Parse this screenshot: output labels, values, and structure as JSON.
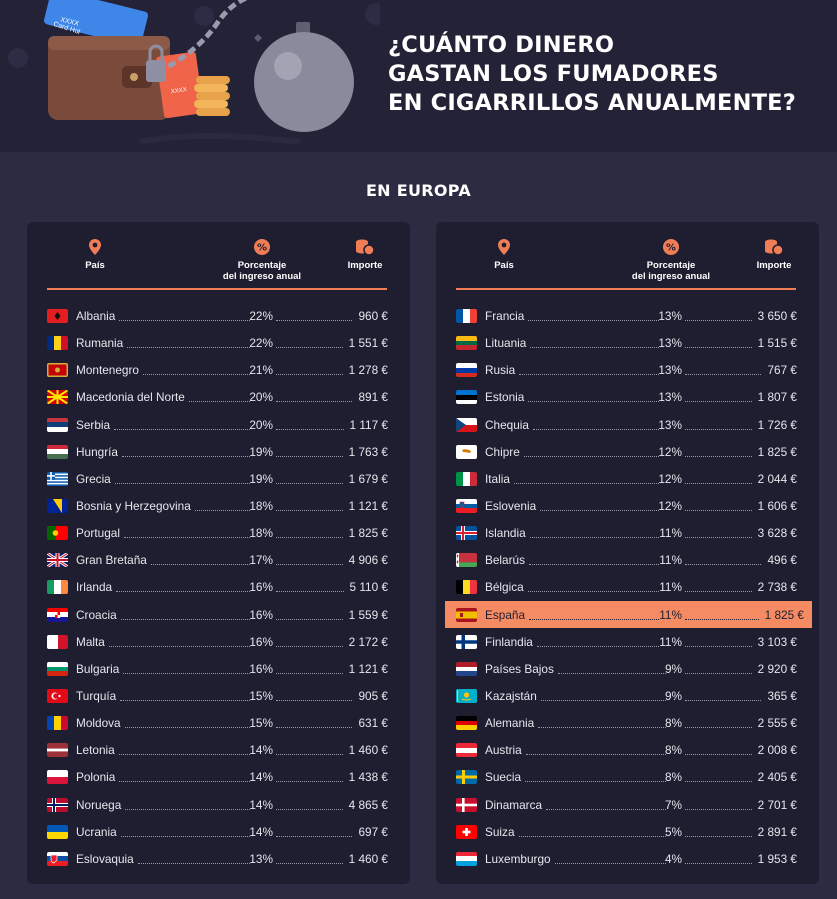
{
  "header": {
    "title_lines": [
      "¿CUÁNTO DINERO",
      "GASTAN LOS FUMADORES",
      "EN CIGARRILLOS ANUALMENTE?"
    ],
    "card_text": "Card Hol",
    "card_text2": "XXXX",
    "tag_text": "XXXX"
  },
  "section_title": "EN EUROPA",
  "columns": {
    "country": "País",
    "pct_line1": "Porcentaje",
    "pct_line2": "del ingreso anual",
    "amount": "Importe"
  },
  "colors": {
    "accent": "#f07d56",
    "highlight": "#f58b63",
    "panel": "#1f1e30",
    "background": "#2c2b42"
  },
  "left_rows": [
    {
      "country": "Albania",
      "pct": "22%",
      "amount": "960 €",
      "flag": "al"
    },
    {
      "country": "Rumania",
      "pct": "22%",
      "amount": "1 551 €",
      "flag": "ro"
    },
    {
      "country": "Montenegro",
      "pct": "21%",
      "amount": "1 278 €",
      "flag": "me"
    },
    {
      "country": "Macedonia del Norte",
      "pct": "20%",
      "amount": "891 €",
      "flag": "mk"
    },
    {
      "country": "Serbia",
      "pct": "20%",
      "amount": "1 117 €",
      "flag": "rs"
    },
    {
      "country": "Hungría",
      "pct": "19%",
      "amount": "1 763 €",
      "flag": "hu"
    },
    {
      "country": "Grecia",
      "pct": "19%",
      "amount": "1 679 €",
      "flag": "gr"
    },
    {
      "country": "Bosnia y Herzegovina",
      "pct": "18%",
      "amount": "1 121 €",
      "flag": "ba"
    },
    {
      "country": "Portugal",
      "pct": "18%",
      "amount": "1 825 €",
      "flag": "pt"
    },
    {
      "country": "Gran Bretaña",
      "pct": "17%",
      "amount": "4 906 €",
      "flag": "gb"
    },
    {
      "country": "Irlanda",
      "pct": "16%",
      "amount": "5 110 €",
      "flag": "ie"
    },
    {
      "country": "Croacia",
      "pct": "16%",
      "amount": "1 559 €",
      "flag": "hr"
    },
    {
      "country": "Malta",
      "pct": "16%",
      "amount": "2 172 €",
      "flag": "mt"
    },
    {
      "country": "Bulgaria",
      "pct": "16%",
      "amount": "1 121 €",
      "flag": "bg"
    },
    {
      "country": "Turquía",
      "pct": "15%",
      "amount": "905 €",
      "flag": "tr"
    },
    {
      "country": "Moldova",
      "pct": "15%",
      "amount": "631 €",
      "flag": "md"
    },
    {
      "country": "Letonia",
      "pct": "14%",
      "amount": "1 460 €",
      "flag": "lv"
    },
    {
      "country": "Polonia",
      "pct": "14%",
      "amount": "1 438 €",
      "flag": "pl"
    },
    {
      "country": "Noruega",
      "pct": "14%",
      "amount": "4 865 €",
      "flag": "no"
    },
    {
      "country": "Ucrania",
      "pct": "14%",
      "amount": "697 €",
      "flag": "ua"
    },
    {
      "country": "Eslovaquia",
      "pct": "13%",
      "amount": "1 460 €",
      "flag": "sk"
    }
  ],
  "right_rows": [
    {
      "country": "Francia",
      "pct": "13%",
      "amount": "3 650 €",
      "flag": "fr"
    },
    {
      "country": "Lituania",
      "pct": "13%",
      "amount": "1 515 €",
      "flag": "lt"
    },
    {
      "country": "Rusia",
      "pct": "13%",
      "amount": "767 €",
      "flag": "ru"
    },
    {
      "country": "Estonia",
      "pct": "13%",
      "amount": "1 807 €",
      "flag": "ee"
    },
    {
      "country": "Chequia",
      "pct": "13%",
      "amount": "1 726 €",
      "flag": "cz"
    },
    {
      "country": "Chipre",
      "pct": "12%",
      "amount": "1 825 €",
      "flag": "cy"
    },
    {
      "country": "Italia",
      "pct": "12%",
      "amount": "2 044 €",
      "flag": "it"
    },
    {
      "country": "Eslovenia",
      "pct": "12%",
      "amount": "1 606 €",
      "flag": "si"
    },
    {
      "country": "Islandia",
      "pct": "11%",
      "amount": "3 628 €",
      "flag": "is"
    },
    {
      "country": "Belarús",
      "pct": "11%",
      "amount": "496 €",
      "flag": "by"
    },
    {
      "country": "Bélgica",
      "pct": "11%",
      "amount": "2 738 €",
      "flag": "be"
    },
    {
      "country": "España",
      "pct": "11%",
      "amount": "1 825 €",
      "flag": "es",
      "highlight": true
    },
    {
      "country": "Finlandia",
      "pct": "11%",
      "amount": "3 103 €",
      "flag": "fi"
    },
    {
      "country": "Países Bajos",
      "pct": "9%",
      "amount": "2 920 €",
      "flag": "nl"
    },
    {
      "country": "Kazajstán",
      "pct": "9%",
      "amount": "365 €",
      "flag": "kz"
    },
    {
      "country": "Alemania",
      "pct": "8%",
      "amount": "2 555 €",
      "flag": "de"
    },
    {
      "country": "Austria",
      "pct": "8%",
      "amount": "2 008 €",
      "flag": "at"
    },
    {
      "country": "Suecia",
      "pct": "8%",
      "amount": "2 405 €",
      "flag": "se"
    },
    {
      "country": "Dinamarca",
      "pct": "7%",
      "amount": "2 701 €",
      "flag": "dk"
    },
    {
      "country": "Suiza",
      "pct": "5%",
      "amount": "2 891 €",
      "flag": "ch"
    },
    {
      "country": "Luxemburgo",
      "pct": "4%",
      "amount": "1 953 €",
      "flag": "lu"
    }
  ]
}
